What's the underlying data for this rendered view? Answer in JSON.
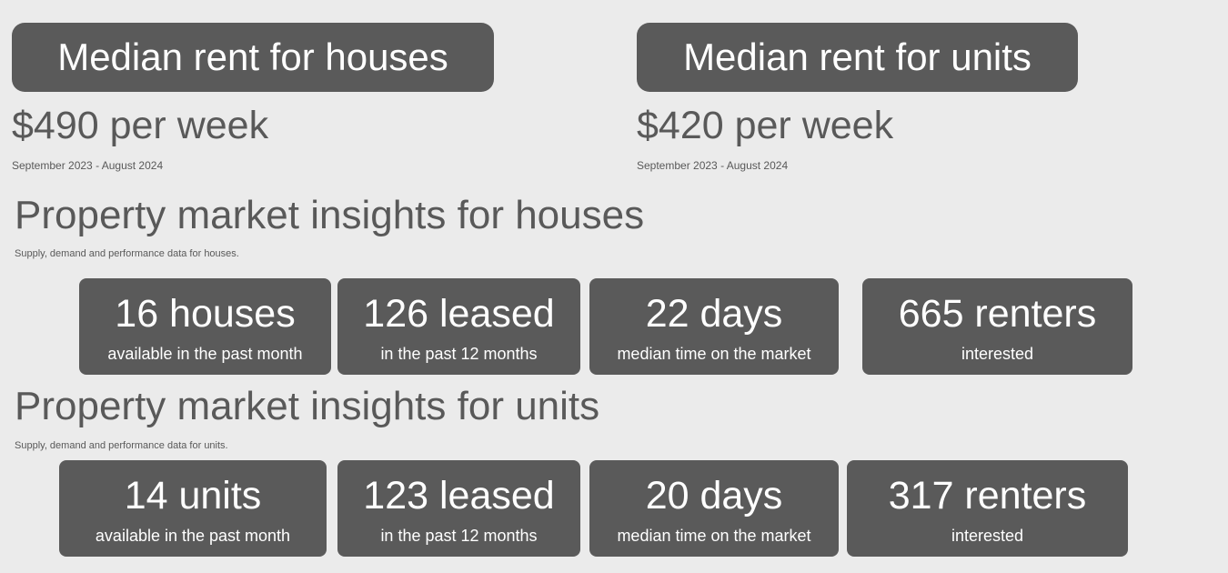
{
  "rent": {
    "houses": {
      "title": "Median rent for houses",
      "price": "$490 per week",
      "period": "September 2023 - August 2024"
    },
    "units": {
      "title": "Median rent for units",
      "price": "$420 per week",
      "period": "September 2023 - August 2024"
    }
  },
  "insights": {
    "houses": {
      "title": "Property market insights for houses",
      "subtitle": "Supply, demand and performance data for houses.",
      "cards": [
        {
          "value": "16 houses",
          "label": "available in the past month"
        },
        {
          "value": "126 leased",
          "label": "in the past 12 months"
        },
        {
          "value": "22 days",
          "label": "median time on the market"
        },
        {
          "value": "665 renters",
          "label": "interested"
        }
      ]
    },
    "units": {
      "title": "Property market insights for units",
      "subtitle": "Supply, demand and performance data for units.",
      "cards": [
        {
          "value": "14 units",
          "label": "available in the past month"
        },
        {
          "value": "123 leased",
          "label": "in the past 12 months"
        },
        {
          "value": "20 days",
          "label": "median time on the market"
        },
        {
          "value": "317 renters",
          "label": "interested"
        }
      ]
    }
  },
  "colors": {
    "background": "#ebebeb",
    "box": "#5a5a5a",
    "text": "#595959"
  }
}
